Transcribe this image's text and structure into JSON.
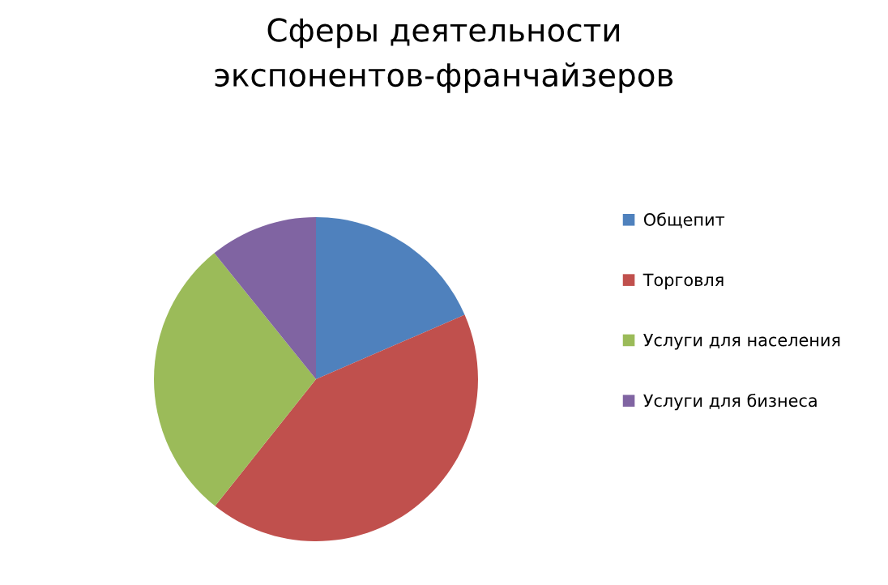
{
  "chart_data": {
    "type": "pie",
    "title": "Сферы деятельности\nэкспонентов-франчайзеров",
    "categories": [
      "Общепит",
      "Торговля",
      "Услуги для населения",
      "Услуги для бизнеса"
    ],
    "values": [
      18.5,
      42.2,
      28.5,
      10.8
    ],
    "colors": [
      "#4f81bd",
      "#c0504d",
      "#9bbb59",
      "#8064a2"
    ],
    "legend": "right"
  }
}
